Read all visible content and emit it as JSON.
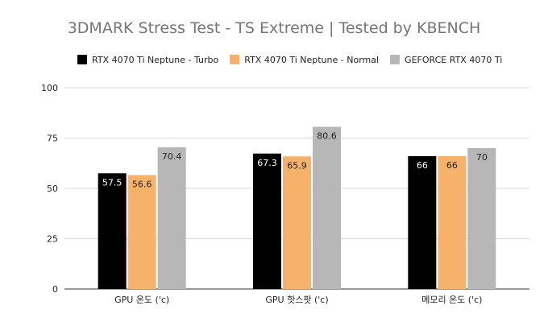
{
  "chart_data": {
    "type": "bar",
    "title": "3DMARK Stress Test - TS Extreme | Tested by KBENCH",
    "categories": [
      "GPU 온도 ('c)",
      "GPU 핫스팟 ('c)",
      "메모리 온도 ('c)"
    ],
    "series": [
      {
        "name": "RTX 4070 Ti Neptune - Turbo",
        "color": "#000000",
        "label_color": "#ffffff",
        "values": [
          57.5,
          67.3,
          66
        ]
      },
      {
        "name": "RTX 4070 Ti Neptune - Normal",
        "color": "#f6b26b",
        "label_color": "#222222",
        "values": [
          56.6,
          65.9,
          66
        ]
      },
      {
        "name": "GEFORCE RTX 4070 Ti",
        "color": "#b7b7b7",
        "label_color": "#222222",
        "values": [
          70.4,
          80.6,
          70
        ]
      }
    ],
    "y_ticks": [
      "0",
      "25",
      "50",
      "75",
      "100"
    ],
    "ylim": [
      0,
      100
    ],
    "grid": true,
    "legend_position": "top"
  }
}
